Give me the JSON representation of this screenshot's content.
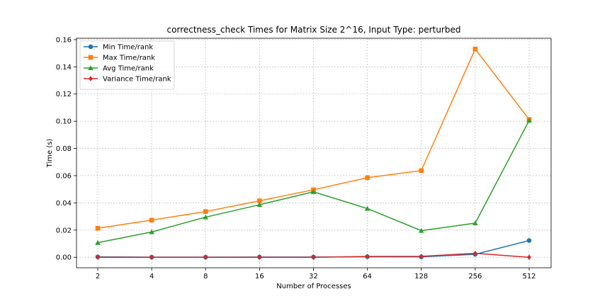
{
  "chart_data": {
    "type": "line",
    "title": "correctness_check Times for Matrix Size 2^16, Input Type: perturbed",
    "xlabel": "Number of Processes",
    "ylabel": "Time (s)",
    "categories": [
      "2",
      "4",
      "8",
      "16",
      "32",
      "64",
      "128",
      "256",
      "512"
    ],
    "ylim": [
      -0.0077,
      0.161
    ],
    "yticks": [
      "0.00",
      "0.02",
      "0.04",
      "0.06",
      "0.08",
      "0.10",
      "0.12",
      "0.14",
      "0.16"
    ],
    "ytick_values": [
      0,
      0.02,
      0.04,
      0.06,
      0.08,
      0.1,
      0.12,
      0.14,
      0.16
    ],
    "grid": true,
    "legend_position": "top-left",
    "series": [
      {
        "name": "Min Time/rank",
        "color": "#1f77b4",
        "marker": "circle",
        "values": [
          0.0003,
          0.0001,
          0.0001,
          0.0002,
          0.0002,
          0.0004,
          0.0003,
          0.0022,
          0.0123
        ]
      },
      {
        "name": "Max Time/rank",
        "color": "#ff7f0e",
        "marker": "square",
        "values": [
          0.0213,
          0.0273,
          0.0336,
          0.0415,
          0.0496,
          0.0585,
          0.0637,
          0.1531,
          0.1013
        ]
      },
      {
        "name": "Avg Time/rank",
        "color": "#2ca02c",
        "marker": "triangle",
        "values": [
          0.0107,
          0.0186,
          0.0295,
          0.0386,
          0.0481,
          0.0358,
          0.0196,
          0.0251,
          0.1005
        ]
      },
      {
        "name": "Variance Time/rank",
        "color": "#d62728",
        "marker": "diamond",
        "values": [
          0.0,
          0.0,
          0.0,
          0.0,
          0.0,
          0.0006,
          0.0007,
          0.0029,
          0.0
        ]
      }
    ]
  }
}
